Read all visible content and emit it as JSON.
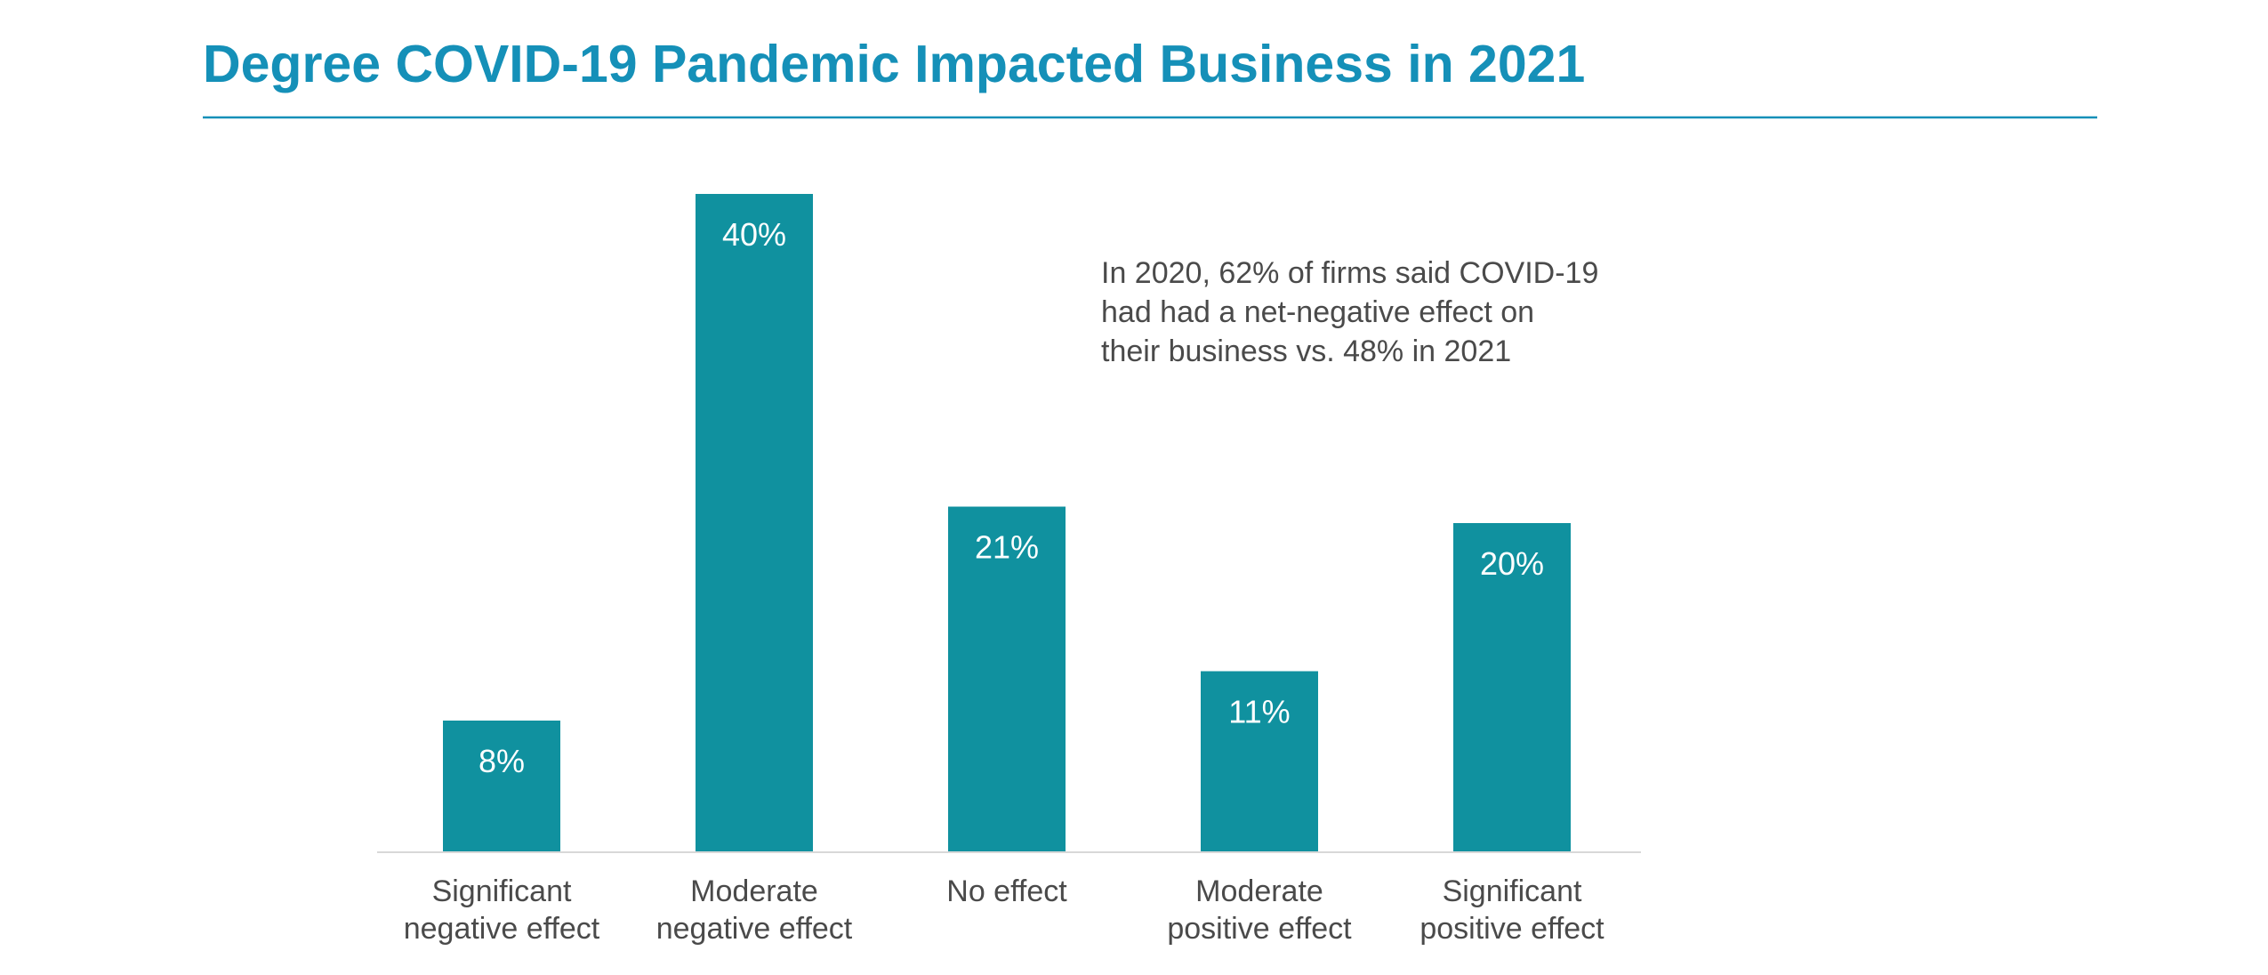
{
  "colors": {
    "title": "#1590b8",
    "rule": "#1590b8",
    "bar": "#10919f",
    "value_label": "#ffffff",
    "category_label": "#4a4a4a",
    "annotation": "#4a4a4a",
    "axis": "#d8d8d8"
  },
  "chart_data": {
    "type": "bar",
    "title": "Degree COVID-19 Pandemic Impacted Business in 2021",
    "categories": [
      [
        "Significant",
        "negative effect"
      ],
      [
        "Moderate",
        "negative effect"
      ],
      [
        "No effect"
      ],
      [
        "Moderate",
        "positive effect"
      ],
      [
        "Significant",
        "positive effect"
      ]
    ],
    "values": [
      8,
      40,
      21,
      11,
      20
    ],
    "value_labels": [
      "8%",
      "40%",
      "21%",
      "11%",
      "20%"
    ],
    "unit": "%",
    "ylim": [
      0,
      40
    ],
    "grid": false,
    "legend": "none",
    "annotation": [
      "In 2020, 62% of firms said COVID-19",
      "had had a net-negative effect on",
      "their business vs. 48% in 2021"
    ]
  }
}
